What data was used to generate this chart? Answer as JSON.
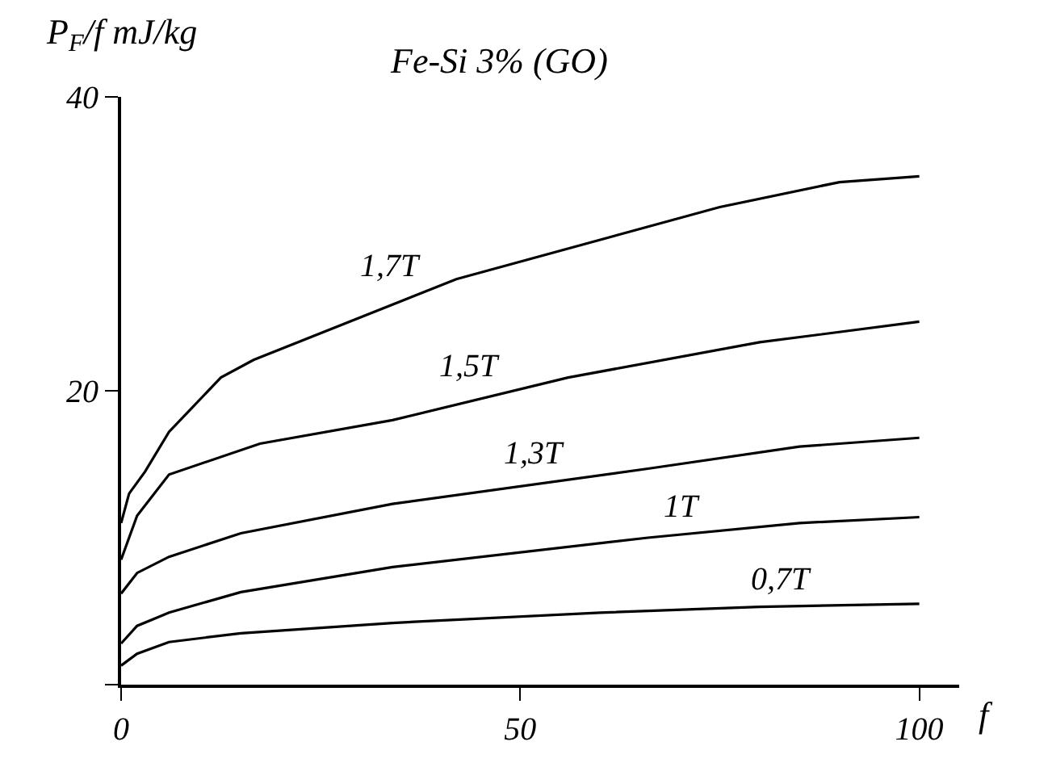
{
  "chart_data": {
    "type": "line",
    "title": "Fe-Si 3% (GO)",
    "xlabel": "f",
    "ylabel": "P$_{F}$/f mJ/kg",
    "xlim": [
      0,
      105
    ],
    "ylim": [
      0,
      40
    ],
    "xticks": [
      0,
      50,
      100
    ],
    "yticks": [
      {
        "value": 0,
        "label": null
      },
      20,
      40
    ],
    "legend": false,
    "marker": "none",
    "line_style": "solid",
    "series": [
      {
        "name": "1,7T",
        "color": "#000000",
        "x": [
          0,
          1,
          3,
          6,
          12.5,
          16.6,
          42,
          75,
          90,
          100
        ],
        "values": [
          11,
          13,
          14.5,
          17.2,
          20.9,
          22.1,
          27.6,
          32.5,
          34.2,
          34.6
        ]
      },
      {
        "name": "1,5T",
        "color": "#000000",
        "x": [
          0,
          2,
          6,
          17.4,
          34,
          56,
          80,
          100
        ],
        "values": [
          8.5,
          11.5,
          14.3,
          16.4,
          18.0,
          20.9,
          23.3,
          24.7
        ]
      },
      {
        "name": "1,3T",
        "color": "#000000",
        "x": [
          0,
          2,
          6,
          15,
          34,
          66,
          85,
          100
        ],
        "values": [
          6.2,
          7.6,
          8.7,
          10.3,
          12.3,
          14.7,
          16.2,
          16.8
        ]
      },
      {
        "name": "1T",
        "color": "#000000",
        "x": [
          0,
          2,
          6,
          15,
          34,
          66,
          85,
          100
        ],
        "values": [
          2.8,
          4.0,
          4.9,
          6.3,
          8.0,
          10.0,
          11.0,
          11.4
        ]
      },
      {
        "name": "0,7T",
        "color": "#000000",
        "x": [
          0,
          2,
          6,
          15,
          34,
          60,
          80,
          100
        ],
        "values": [
          1.3,
          2.1,
          2.9,
          3.5,
          4.2,
          4.9,
          5.3,
          5.5
        ]
      }
    ]
  }
}
